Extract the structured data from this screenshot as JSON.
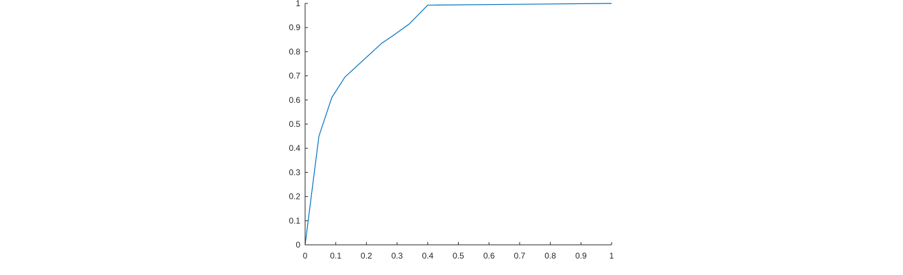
{
  "chart_data": {
    "type": "line",
    "title": "",
    "xlabel": "",
    "ylabel": "",
    "xlim": [
      0,
      1
    ],
    "ylim": [
      0,
      1
    ],
    "grid": false,
    "x_ticks": [
      "0",
      "0.1",
      "0.2",
      "0.3",
      "0.4",
      "0.5",
      "0.6",
      "0.7",
      "0.8",
      "0.9",
      "1"
    ],
    "y_ticks": [
      "0",
      "0.1",
      "0.2",
      "0.3",
      "0.4",
      "0.5",
      "0.6",
      "0.7",
      "0.8",
      "0.9",
      "1"
    ],
    "series": [
      {
        "color": "#0072BD",
        "x": [
          0,
          0.045,
          0.087,
          0.13,
          0.19,
          0.25,
          0.285,
          0.34,
          0.4,
          1.0
        ],
        "y": [
          0,
          0.45,
          0.61,
          0.695,
          0.765,
          0.835,
          0.865,
          0.915,
          0.993,
          1.0
        ]
      }
    ]
  }
}
